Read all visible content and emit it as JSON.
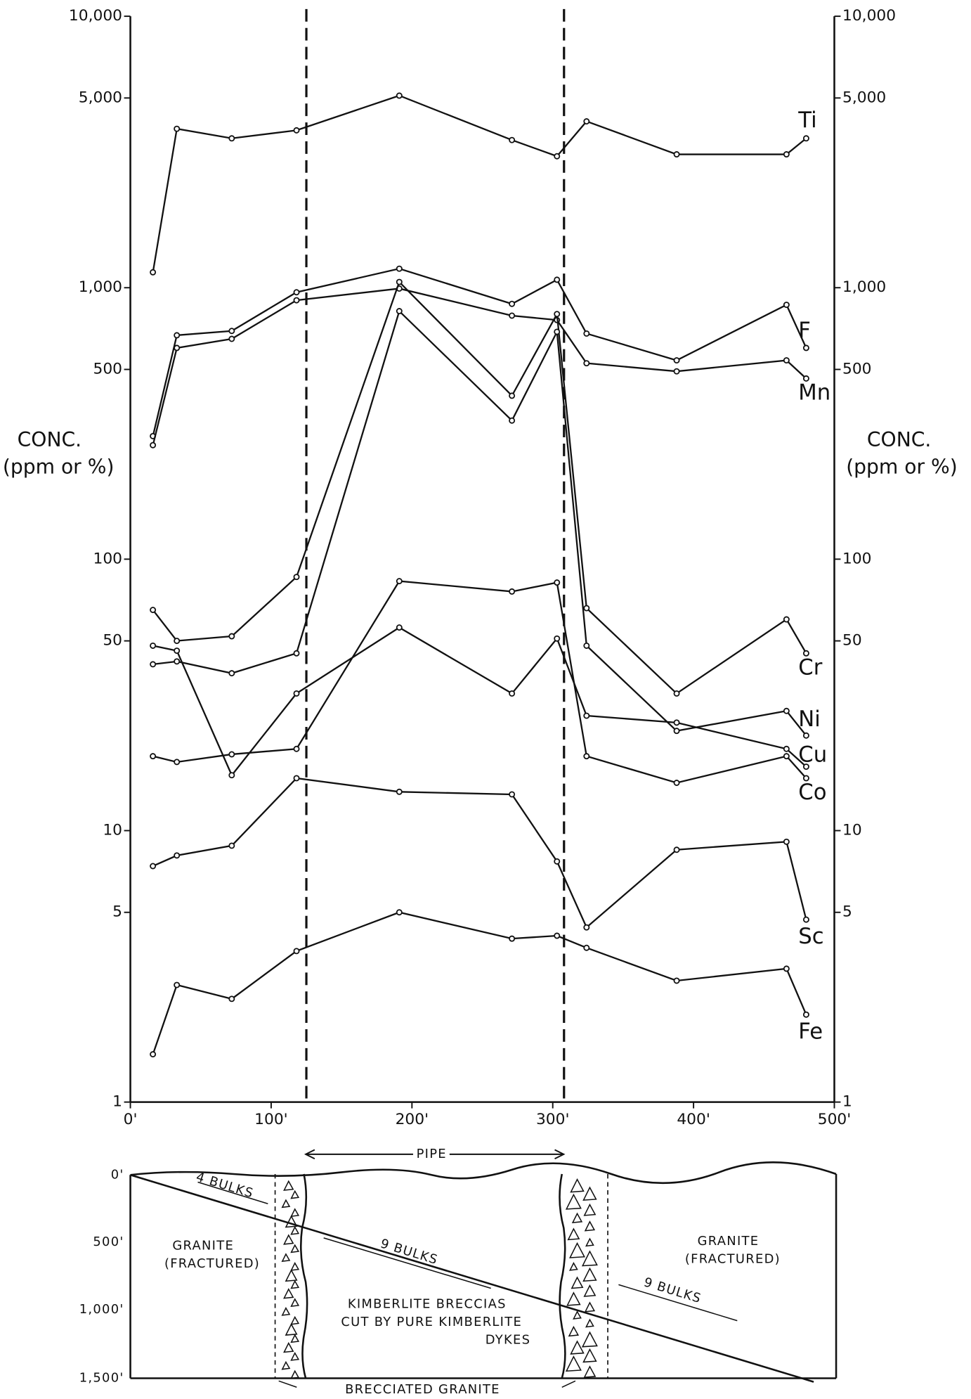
{
  "chart_data": {
    "type": "line",
    "y_label_line1": "CONC.",
    "y_label_line2": "(ppm or %)",
    "x": [
      16,
      33,
      72,
      118,
      191,
      271,
      303,
      324,
      388,
      466,
      480
    ],
    "xlim": [
      0,
      500
    ],
    "xticks": [
      {
        "value": 0,
        "label": "0'"
      },
      {
        "value": 100,
        "label": "100'"
      },
      {
        "value": 200,
        "label": "200'"
      },
      {
        "value": 300,
        "label": "300'"
      },
      {
        "value": 400,
        "label": "400'"
      },
      {
        "value": 500,
        "label": "500'"
      }
    ],
    "ylim": [
      1,
      10000
    ],
    "yticks": [
      1,
      5,
      10,
      50,
      100,
      500,
      {
        "value": 1000,
        "label": "1,000"
      },
      {
        "value": 5000,
        "label": "5,000"
      },
      {
        "value": 10000,
        "label": "10,000"
      }
    ],
    "log_y": true,
    "vlines": [
      125,
      308
    ],
    "series": [
      {
        "name": "Ti",
        "color": "#111111",
        "values": [
          1140,
          3850,
          3550,
          3800,
          5100,
          3500,
          3050,
          4100,
          3100,
          3100,
          3550
        ]
      },
      {
        "name": "F",
        "color": "#111111",
        "values": [
          284,
          668,
          693,
          962,
          1175,
          872,
          1070,
          678,
          540,
          865,
          600
        ]
      },
      {
        "name": "Mn",
        "color": "#111111",
        "values": [
          263,
          600,
          648,
          899,
          993,
          789,
          760,
          527,
          492,
          540,
          463
        ]
      },
      {
        "name": "Cr",
        "color": "#111111",
        "values": [
          65,
          50,
          52,
          86,
          1050,
          400,
          800,
          66,
          32,
          60,
          45
        ]
      },
      {
        "name": "Ni",
        "color": "#111111",
        "values": [
          41,
          42,
          38,
          45,
          820,
          324,
          688,
          48,
          23.3,
          27.6,
          22.4
        ]
      },
      {
        "name": "Cu",
        "color": "#111111",
        "values": [
          48,
          46,
          16,
          32,
          56,
          32,
          51,
          26.5,
          25,
          20,
          17.2
        ]
      },
      {
        "name": "Co",
        "color": "#111111",
        "values": [
          18.8,
          17.9,
          19.1,
          20,
          83,
          76,
          82,
          18.8,
          15,
          18.8,
          15.6
        ]
      },
      {
        "name": "Sc",
        "color": "#111111",
        "values": [
          7.4,
          8.1,
          8.8,
          15.6,
          13.9,
          13.6,
          7.7,
          4.4,
          8.5,
          9.1,
          4.7
        ]
      },
      {
        "name": "Fe",
        "color": "#111111",
        "values": [
          1.5,
          2.7,
          2.4,
          3.6,
          5.0,
          4.0,
          4.1,
          3.7,
          2.8,
          3.1,
          2.1
        ]
      }
    ]
  },
  "section": {
    "pipe_label": "PIPE",
    "depth_labels": [
      "0'",
      "500'",
      "1,000'",
      "1,500'"
    ],
    "bulks": [
      "4 BULKS",
      "9 BULKS",
      "9 BULKS"
    ],
    "left_rock": [
      "GRANITE",
      "(FRACTURED)"
    ],
    "right_rock": [
      "GRANITE",
      "(FRACTURED)"
    ],
    "kimberlite": [
      "KIMBERLITE BRECCIAS",
      "CUT BY PURE KIMBERLITE",
      "DYKES"
    ],
    "breccia_label": "BRECCIATED GRANITE"
  }
}
